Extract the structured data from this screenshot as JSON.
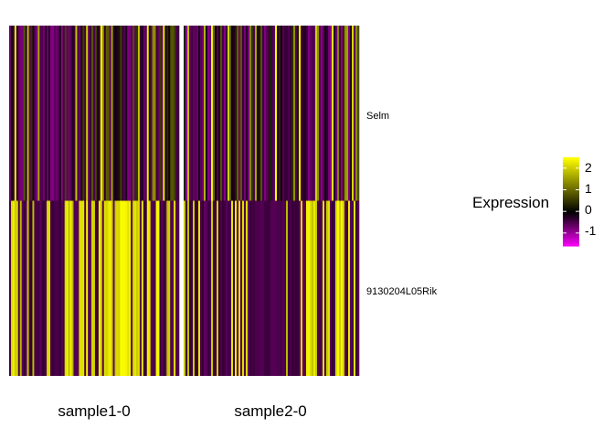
{
  "chart_data": {
    "type": "heatmap",
    "genes": [
      "Selm",
      "9130204L05Rik"
    ],
    "groups": [
      "sample1-0",
      "sample2-0"
    ],
    "cells_per_group": [
      95,
      96
    ],
    "value_range": [
      -1.6,
      2.5
    ],
    "legend": {
      "title": "Expression",
      "ticks": [
        2,
        1,
        0,
        -1
      ],
      "tick_labels": [
        "2",
        "1",
        "0",
        "-1"
      ],
      "placement": "right"
    },
    "colors": {
      "low": "#ff00ff",
      "mid": "#000000",
      "high": "#ffff00",
      "group_gap": "#ffffff"
    }
  }
}
